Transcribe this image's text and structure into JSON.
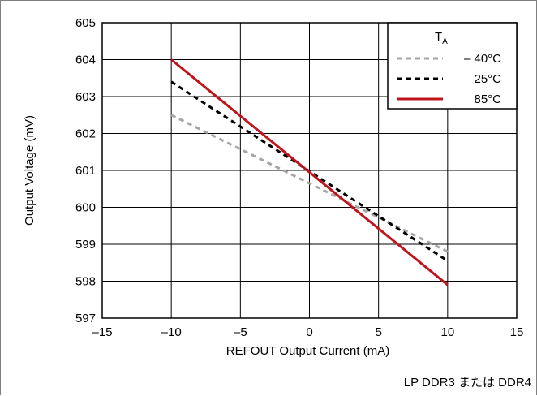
{
  "chart_data": {
    "type": "line",
    "title": "",
    "xlabel": "REFOUT Output Current (mA)",
    "ylabel": "Output Voltage (mV)",
    "xlim": [
      -15,
      15
    ],
    "ylim": [
      597,
      605
    ],
    "xticks": [
      -15,
      -10,
      -5,
      0,
      5,
      10,
      15
    ],
    "yticks": [
      597,
      598,
      599,
      600,
      601,
      602,
      603,
      604,
      605
    ],
    "xtick_labels": [
      "–15",
      "–10",
      "–5",
      "0",
      "5",
      "10",
      "15"
    ],
    "ytick_labels": [
      "597",
      "598",
      "599",
      "600",
      "601",
      "602",
      "603",
      "604",
      "605"
    ],
    "grid": true,
    "legend": {
      "title_main": "T",
      "title_sub": "A",
      "placement": "top-right"
    },
    "series": [
      {
        "name": "– 40°C",
        "color": "#a6a6a6",
        "dash": "dashed",
        "x": [
          -10,
          10
        ],
        "y": [
          602.5,
          598.8
        ]
      },
      {
        "name": "25°C",
        "color": "#000000",
        "dash": "dashed",
        "x": [
          -10,
          10
        ],
        "y": [
          603.4,
          598.55
        ]
      },
      {
        "name": "85°C",
        "color": "#c0141c",
        "dash": "solid",
        "x": [
          -10,
          10
        ],
        "y": [
          604.0,
          597.9
        ]
      }
    ]
  },
  "caption": "LP DDR3 または DDR4"
}
